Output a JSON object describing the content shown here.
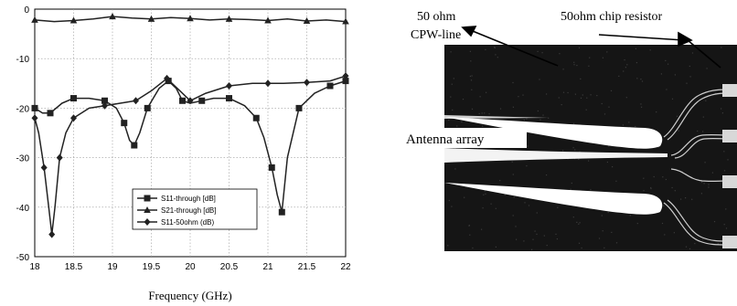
{
  "chart_data": {
    "type": "line",
    "title": "",
    "xlabel": "Frequency (GHz)",
    "ylabel": "",
    "xlim": [
      18,
      22
    ],
    "ylim": [
      -50,
      0
    ],
    "grid": true,
    "legend_position": "bottom-center",
    "x_ticks": [
      "18",
      "18.5",
      "19",
      "19.5",
      "20",
      "20.5",
      "21",
      "21.5",
      "22"
    ],
    "y_ticks": [
      "0",
      "-10",
      "-20",
      "-30",
      "-40",
      "-50"
    ],
    "series": [
      {
        "name": "S11-through [dB]",
        "marker": "square",
        "x": [
          18.0,
          18.1,
          18.2,
          18.35,
          18.5,
          18.7,
          18.9,
          19.05,
          19.15,
          19.22,
          19.28,
          19.35,
          19.45,
          19.6,
          19.72,
          19.82,
          19.9,
          20.0,
          20.15,
          20.3,
          20.5,
          20.7,
          20.85,
          20.95,
          21.05,
          21.12,
          21.18,
          21.25,
          21.4,
          21.6,
          21.8,
          22.0
        ],
        "y": [
          -20.0,
          -21.0,
          -21.0,
          -19.0,
          -18.0,
          -18.0,
          -18.5,
          -20.0,
          -23.0,
          -26.5,
          -27.5,
          -25.0,
          -20.0,
          -16.0,
          -14.5,
          -16.0,
          -18.5,
          -19.0,
          -18.5,
          -18.0,
          -18.0,
          -19.5,
          -22.0,
          -26.0,
          -32.0,
          -37.5,
          -41.0,
          -30.0,
          -20.0,
          -17.0,
          -15.5,
          -14.5
        ]
      },
      {
        "name": "S21-through [dB]",
        "marker": "triangle",
        "x": [
          18.0,
          18.25,
          18.5,
          18.75,
          19.0,
          19.25,
          19.5,
          19.75,
          20.0,
          20.25,
          20.5,
          20.75,
          21.0,
          21.25,
          21.5,
          21.75,
          22.0
        ],
        "y": [
          -2.2,
          -2.5,
          -2.3,
          -2.0,
          -1.5,
          -1.8,
          -2.0,
          -1.7,
          -1.9,
          -2.2,
          -2.0,
          -2.1,
          -2.3,
          -2.0,
          -2.4,
          -2.2,
          -2.5
        ]
      },
      {
        "name": "S11-50ohm (dB)",
        "marker": "diamond",
        "x": [
          18.0,
          18.05,
          18.12,
          18.18,
          18.22,
          18.26,
          18.32,
          18.4,
          18.5,
          18.7,
          18.9,
          19.1,
          19.3,
          19.5,
          19.7,
          19.9,
          20.0,
          20.2,
          20.5,
          20.8,
          21.0,
          21.2,
          21.5,
          21.8,
          22.0
        ],
        "y": [
          -22.0,
          -25.0,
          -32.0,
          -40.0,
          -45.5,
          -40.0,
          -30.0,
          -25.0,
          -22.0,
          -20.0,
          -19.5,
          -19.0,
          -18.5,
          -16.5,
          -14.0,
          -17.0,
          -18.5,
          -17.0,
          -15.5,
          -15.0,
          -15.0,
          -15.0,
          -14.8,
          -14.5,
          -13.5
        ]
      }
    ]
  },
  "photo": {
    "label_cpw_line": "50 ohm",
    "label_cpw_line_2": "CPW-line",
    "label_resistor": "50ohm chip resistor",
    "label_antenna": "Antenna array"
  }
}
